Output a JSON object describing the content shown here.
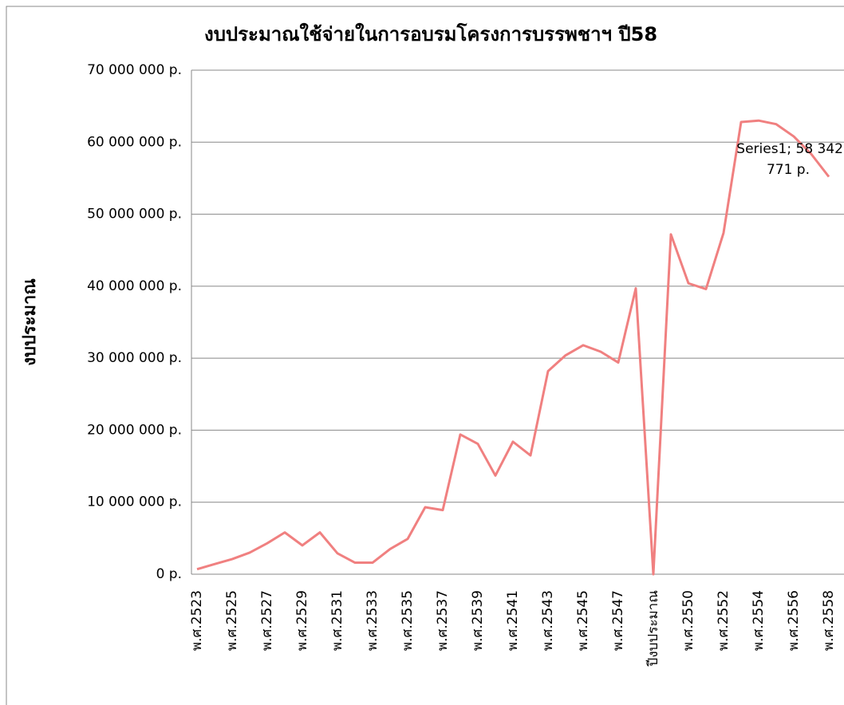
{
  "chart_data": {
    "type": "line",
    "title": "งบประมาณใช้จ่ายในการอบรมโครงการบรรพชาฯ ปี58",
    "y_label": "งบประมาณ",
    "categories": [
      "พ.ศ.2523",
      null,
      "พ.ศ.2525",
      null,
      "พ.ศ.2527",
      null,
      "พ.ศ.2529",
      null,
      "พ.ศ.2531",
      null,
      "พ.ศ.2533",
      null,
      "พ.ศ.2535",
      null,
      "พ.ศ.2537",
      null,
      "พ.ศ.2539",
      null,
      "พ.ศ.2541",
      null,
      "พ.ศ.2543",
      null,
      "พ.ศ.2545",
      null,
      "พ.ศ.2547",
      null,
      "ปีงบประมาณ",
      null,
      "พ.ศ.2550",
      null,
      "พ.ศ.2552",
      null,
      "พ.ศ.2554",
      null,
      "พ.ศ.2556",
      null,
      "พ.ศ.2558"
    ],
    "series": [
      {
        "name": "Series1",
        "color": "#f08080",
        "values": [
          700000,
          1400000,
          2100000,
          3000000,
          4300000,
          5800000,
          4000000,
          5800000,
          2900000,
          1600000,
          1600000,
          3500000,
          4900000,
          9300000,
          8900000,
          19400000,
          18100000,
          13700000,
          18400000,
          16500000,
          28200000,
          30400000,
          31800000,
          30900000,
          29400000,
          39700000,
          0,
          47200000,
          40400000,
          39600000,
          47400000,
          62800000,
          63000000,
          62500000,
          60800000,
          58342771,
          55200000
        ],
        "value_labels": [
          null,
          null,
          null,
          null,
          null,
          null,
          null,
          null,
          null,
          null,
          null,
          null,
          null,
          null,
          null,
          null,
          null,
          null,
          null,
          null,
          null,
          null,
          null,
          null,
          null,
          null,
          null,
          null,
          null,
          null,
          null,
          null,
          null,
          null,
          null,
          "Series1; 58 342 771 p.",
          null
        ]
      }
    ],
    "ylim": [
      0,
      70000000
    ],
    "yticks": [
      {
        "value": 0,
        "label": "0 p."
      },
      {
        "value": 10000000,
        "label": "10 000 000 p."
      },
      {
        "value": 20000000,
        "label": "20 000 000 p."
      },
      {
        "value": 30000000,
        "label": "30 000 000 p."
      },
      {
        "value": 40000000,
        "label": "40 000 000 p."
      },
      {
        "value": 50000000,
        "label": "50 000 000 p."
      },
      {
        "value": 60000000,
        "label": "60 000 000 p."
      },
      {
        "value": 70000000,
        "label": "70 000 000 p."
      }
    ],
    "grid": true
  }
}
